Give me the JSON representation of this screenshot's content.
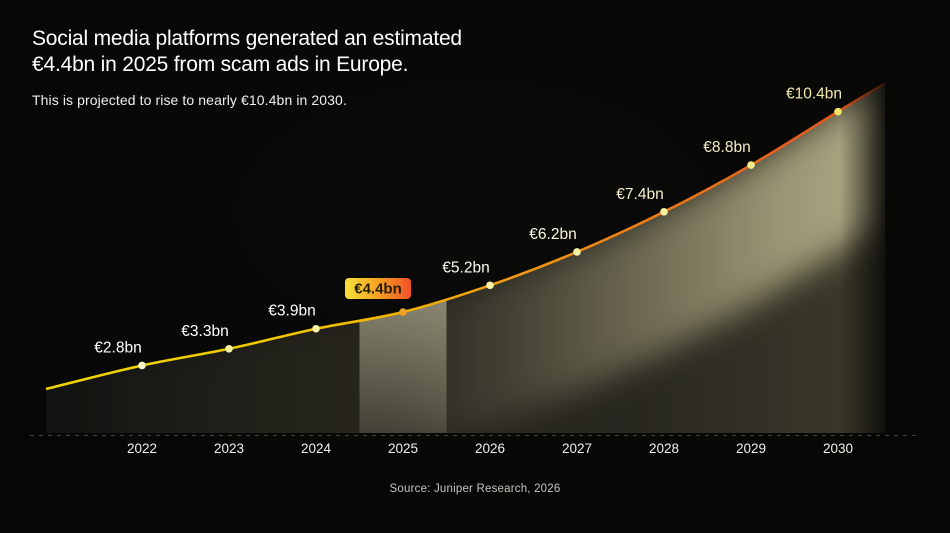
{
  "header": {
    "title_line1": "Social media platforms generated an estimated",
    "title_line2": "€4.4bn in 2025 from scam ads in Europe.",
    "subtitle": "This is projected to rise to nearly €10.4bn in 2030."
  },
  "source": "Source: Juniper Research, 2026",
  "chart_data": {
    "type": "area",
    "title": "Social media platforms generated an estimated €4.4bn in 2025 from scam ads in Europe.",
    "subtitle": "This is projected to rise to nearly €10.4bn in 2030.",
    "unit": "€bn",
    "categories": [
      "2022",
      "2023",
      "2024",
      "2025",
      "2026",
      "2027",
      "2028",
      "2029",
      "2030"
    ],
    "values": [
      2.8,
      3.3,
      3.9,
      4.4,
      5.2,
      6.2,
      7.4,
      8.8,
      10.4
    ],
    "labels": [
      "€2.8bn",
      "€3.3bn",
      "€3.9bn",
      "€4.4bn",
      "€5.2bn",
      "€6.2bn",
      "€7.4bn",
      "€8.8bn",
      "€10.4bn"
    ],
    "highlighted_index": 3,
    "highlighted_category": "2025",
    "highlighted_label": "€4.4bn",
    "xlabel": "",
    "ylabel": "",
    "ylim": [
      0,
      11
    ],
    "grid": "off",
    "legend": "none",
    "style": {
      "line_gradient": [
        "#f2d600",
        "#f0c800",
        "#f2b200",
        "#f09a14",
        "#ec7f1a",
        "#e6641e",
        "#df5120"
      ],
      "area_base_gradient": [
        "#121210",
        "#21201a",
        "#282720",
        "#3d3b2a"
      ],
      "glow_color": "#a59f7a",
      "band_color": "#ece7c3",
      "badge_gradient": [
        "#f8e03a",
        "#f49a22",
        "#f4502a"
      ],
      "badge_text_color": "#241d02",
      "label_colors": [
        "#ffffff",
        "#ffffff",
        "#ffffff",
        "#ffffff",
        "#fdfbf0",
        "#fbf7e3",
        "#f7f1cd",
        "#f5eec2",
        "#f2e9ad"
      ],
      "dot_colors": [
        "#fbf7d0",
        "#f8f3a4",
        "#f8f3a4",
        "#f0a125",
        "#f6f0a0",
        "#f6f0a0",
        "#f6f09a",
        "#f5ed8c",
        "#f3e564"
      ],
      "axis_line_color": "#45453b"
    }
  }
}
